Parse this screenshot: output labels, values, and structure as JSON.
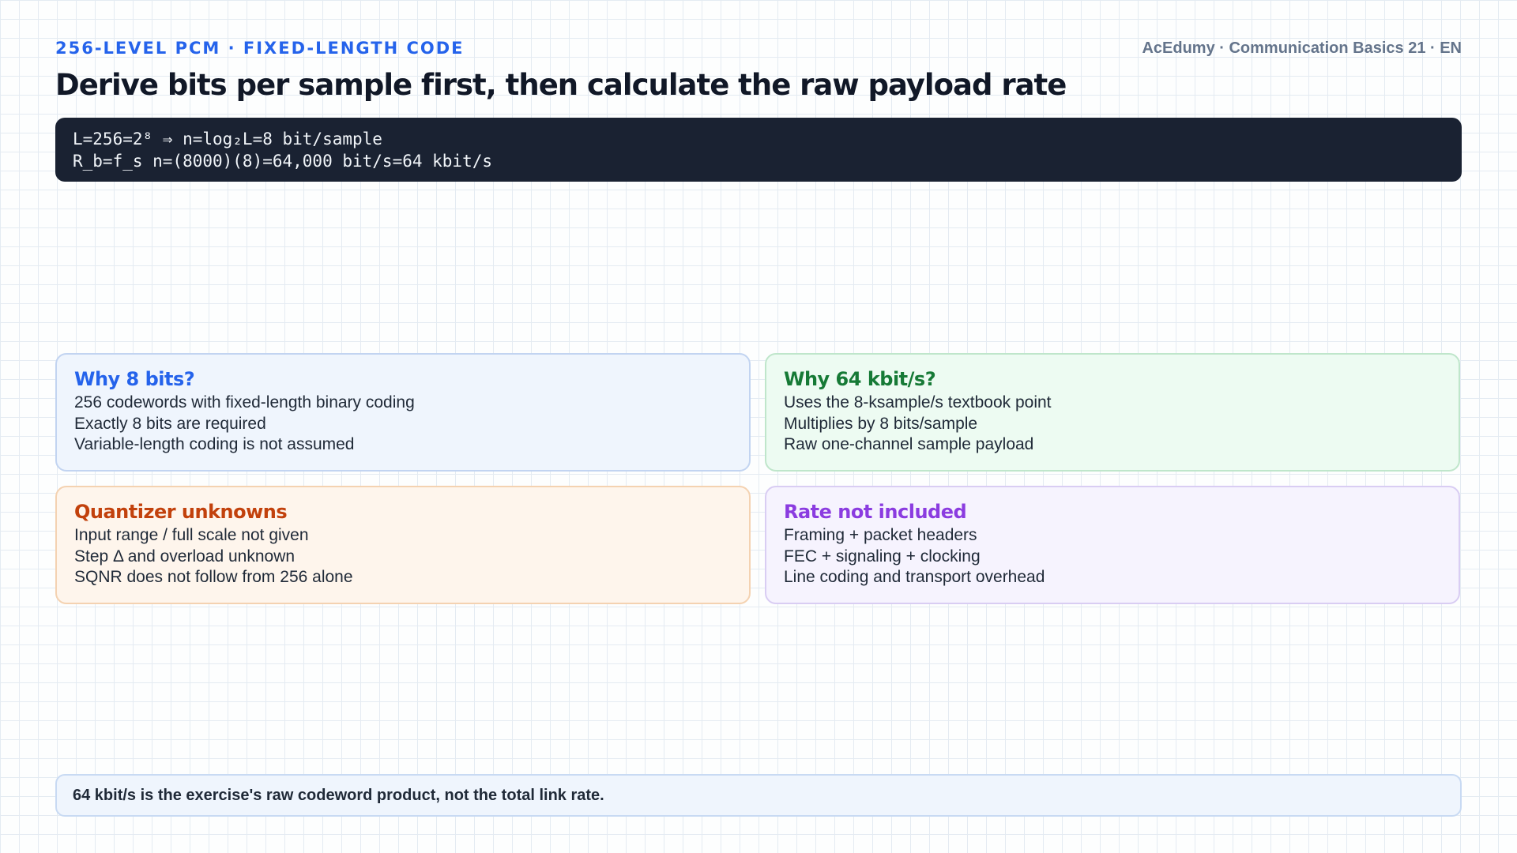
{
  "header": {
    "kicker": "256-LEVEL PCM · FIXED-LENGTH CODE",
    "brand": "AcEdumy · Communication Basics 21 · EN",
    "title": "Derive bits per sample first, then calculate the raw payload rate"
  },
  "formula": {
    "lines": [
      "L=256=2⁸ ⇒ n=log₂L=8 bit/sample",
      "R_b=f_s n=(8000)(8)=64,000 bit/s=64 kbit/s"
    ]
  },
  "cards": [
    {
      "title": "Why 8 bits?",
      "lines": [
        "256 codewords with fixed-length binary coding",
        "Exactly 8 bits are required",
        "Variable-length coding is not assumed"
      ],
      "accent": "#2563eb"
    },
    {
      "title": "Why 64 kbit/s?",
      "lines": [
        "Uses the 8-ksample/s textbook point",
        "Multiplies by 8 bits/sample",
        "Raw one-channel sample payload"
      ],
      "accent": "#167a36"
    },
    {
      "title": "Quantizer unknowns",
      "lines": [
        "Input range / full scale not given",
        "Step Δ and overload unknown",
        "SQNR does not follow from 256 alone"
      ],
      "accent": "#c2410c"
    },
    {
      "title": "Rate not included",
      "lines": [
        "Framing + packet headers",
        "FEC + signaling + clocking",
        "Line coding and transport overhead"
      ],
      "accent": "#8b3ce0"
    }
  ],
  "footer": {
    "note": "64 kbit/s is the exercise's raw codeword product, not the total link rate."
  }
}
